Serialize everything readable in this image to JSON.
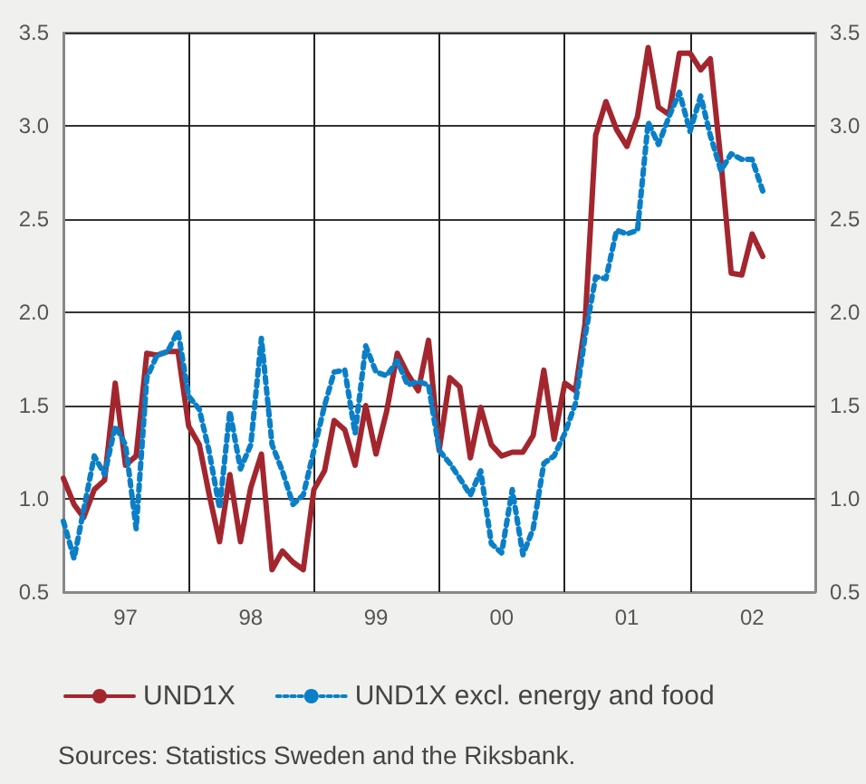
{
  "chart_data": {
    "type": "line",
    "x": [
      "1997-01",
      "1997-02",
      "1997-03",
      "1997-04",
      "1997-05",
      "1997-06",
      "1997-07",
      "1997-08",
      "1997-09",
      "1997-10",
      "1997-11",
      "1997-12",
      "1998-01",
      "1998-02",
      "1998-03",
      "1998-04",
      "1998-05",
      "1998-06",
      "1998-07",
      "1998-08",
      "1998-09",
      "1998-10",
      "1998-11",
      "1998-12",
      "1999-01",
      "1999-02",
      "1999-03",
      "1999-04",
      "1999-05",
      "1999-06",
      "1999-07",
      "1999-08",
      "1999-09",
      "1999-10",
      "1999-11",
      "1999-12",
      "2000-01",
      "2000-02",
      "2000-03",
      "2000-04",
      "2000-05",
      "2000-06",
      "2000-07",
      "2000-08",
      "2000-09",
      "2000-10",
      "2000-11",
      "2000-12",
      "2001-01",
      "2001-02",
      "2001-03",
      "2001-04",
      "2001-05",
      "2001-06",
      "2001-07",
      "2001-08",
      "2001-09",
      "2001-10",
      "2001-11",
      "2001-12",
      "2002-01",
      "2002-02",
      "2002-03",
      "2002-04",
      "2002-05",
      "2002-06",
      "2002-07",
      "2002-08"
    ],
    "series": [
      {
        "name": "UND1X",
        "color": "#a3262e",
        "line_style": "solid",
        "values": [
          1.11,
          0.97,
          0.9,
          1.05,
          1.1,
          1.62,
          1.18,
          1.23,
          1.78,
          1.77,
          1.79,
          1.79,
          1.39,
          1.29,
          1.03,
          0.77,
          1.13,
          0.77,
          1.06,
          1.24,
          0.62,
          0.72,
          0.66,
          0.62,
          1.05,
          1.15,
          1.42,
          1.37,
          1.18,
          1.5,
          1.24,
          1.47,
          1.78,
          1.67,
          1.58,
          1.85,
          1.26,
          1.65,
          1.6,
          1.22,
          1.49,
          1.29,
          1.23,
          1.25,
          1.25,
          1.34,
          1.69,
          1.32,
          1.62,
          1.58,
          1.94,
          2.95,
          3.13,
          2.98,
          2.89,
          3.05,
          3.42,
          3.1,
          3.06,
          3.39,
          3.39,
          3.3,
          3.36,
          2.81,
          2.21,
          2.2,
          2.42,
          2.3
        ]
      },
      {
        "name": "UND1X excl. energy and food",
        "color": "#0a7fc8",
        "line_style": "dotted",
        "values": [
          0.88,
          0.68,
          0.94,
          1.23,
          1.13,
          1.39,
          1.29,
          0.84,
          1.65,
          1.77,
          1.79,
          1.9,
          1.55,
          1.48,
          1.26,
          0.95,
          1.47,
          1.16,
          1.29,
          1.86,
          1.29,
          1.15,
          0.97,
          1.02,
          1.26,
          1.5,
          1.68,
          1.69,
          1.35,
          1.82,
          1.68,
          1.66,
          1.74,
          1.61,
          1.63,
          1.61,
          1.26,
          1.19,
          1.11,
          1.02,
          1.15,
          0.76,
          0.71,
          1.05,
          0.7,
          0.84,
          1.19,
          1.23,
          1.35,
          1.51,
          1.87,
          2.19,
          2.18,
          2.44,
          2.42,
          2.44,
          3.02,
          2.9,
          3.05,
          3.18,
          2.97,
          3.16,
          2.95,
          2.76,
          2.85,
          2.82,
          2.82,
          2.65
        ]
      }
    ],
    "xlim": [
      "1997-01",
      "2003-01"
    ],
    "xticks": [
      {
        "value": "1997-07",
        "label": "97"
      },
      {
        "value": "1998-01",
        "label": null
      },
      {
        "value": "1998-07",
        "label": "98"
      },
      {
        "value": "1999-01",
        "label": null
      },
      {
        "value": "1999-07",
        "label": "99"
      },
      {
        "value": "2000-01",
        "label": null
      },
      {
        "value": "2000-07",
        "label": "00"
      },
      {
        "value": "2001-01",
        "label": null
      },
      {
        "value": "2001-07",
        "label": "01"
      },
      {
        "value": "2002-01",
        "label": null
      },
      {
        "value": "2002-07",
        "label": "02"
      }
    ],
    "ylim": [
      0.5,
      3.5
    ],
    "yticks": [
      0.5,
      {
        "value": 1,
        "label": "1.0"
      },
      1.5,
      {
        "value": 2,
        "label": "2.0"
      },
      2.5,
      {
        "value": 3,
        "label": "3.0"
      },
      3.5
    ],
    "y2lim": [
      0.5,
      3.5
    ],
    "y2ticks": [
      0.5,
      {
        "value": 1,
        "label": "1.0"
      },
      1.5,
      {
        "value": 2,
        "label": "2.0"
      },
      2.5,
      {
        "value": 3,
        "label": "3.0"
      },
      3.5
    ],
    "grid": true,
    "legend": "bottom",
    "annotations": [
      "Sources: Statistics Sweden and the Riksbank."
    ]
  }
}
